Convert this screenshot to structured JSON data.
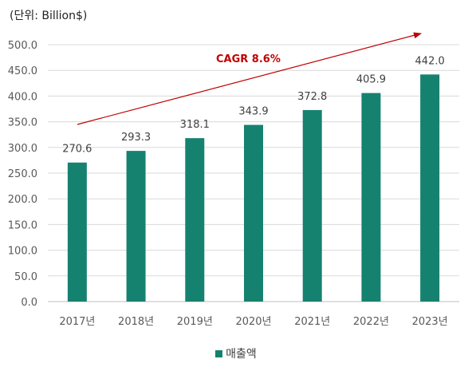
{
  "unit_label": "(단위: Billion$)",
  "cagr_label": "CAGR 8.6%",
  "colors": {
    "bar": "#158270",
    "arrow": "#C00000",
    "grid": "#d9d9d9"
  },
  "chart_data": {
    "type": "bar",
    "categories": [
      "2017년",
      "2018년",
      "2019년",
      "2020년",
      "2021년",
      "2022년",
      "2023년"
    ],
    "series": [
      {
        "name": "매출액",
        "values": [
          270.6,
          293.3,
          318.1,
          343.9,
          372.8,
          405.9,
          442.0
        ]
      }
    ],
    "value_labels": [
      "270.6",
      "293.3",
      "318.1",
      "343.9",
      "372.8",
      "405.9",
      "442.0"
    ],
    "y_ticks": [
      "0.0",
      "50.0",
      "100.0",
      "150.0",
      "200.0",
      "250.0",
      "300.0",
      "350.0",
      "400.0",
      "450.0",
      "500.0"
    ],
    "ylim": [
      0,
      500
    ],
    "grid": true,
    "legend_position": "bottom",
    "annotation": "CAGR 8.6%"
  }
}
